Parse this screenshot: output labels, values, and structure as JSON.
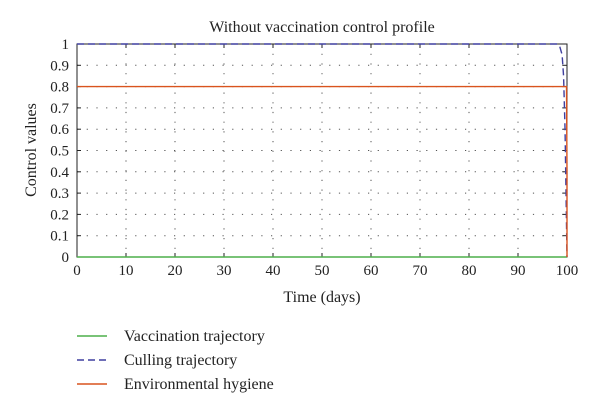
{
  "chart_data": {
    "type": "line",
    "title": "Without vaccination control profile",
    "xlabel": "Time (days)",
    "ylabel": "Control values",
    "xlim": [
      0,
      100
    ],
    "ylim": [
      0,
      1
    ],
    "xticks": [
      0,
      10,
      20,
      30,
      40,
      50,
      60,
      70,
      80,
      90,
      100
    ],
    "yticks": [
      0,
      0.1,
      0.2,
      0.3,
      0.4,
      0.5,
      0.6,
      0.7,
      0.8,
      0.9,
      1
    ],
    "xtick_labels": [
      "0",
      "10",
      "20",
      "30",
      "40",
      "50",
      "60",
      "70",
      "80",
      "90",
      "100"
    ],
    "ytick_labels": [
      "0",
      "0.1",
      "0.2",
      "0.3",
      "0.4",
      "0.5",
      "0.6",
      "0.7",
      "0.8",
      "0.9",
      "1"
    ],
    "grid": true,
    "legend_position": "bottom",
    "series": [
      {
        "name": "Vaccination trajectory",
        "color": "#4daf4a",
        "dash": "solid",
        "x": [
          0,
          100
        ],
        "y": [
          0,
          0
        ]
      },
      {
        "name": "Culling trajectory",
        "color": "#3f3f9f",
        "dash": "dashed",
        "x": [
          0,
          98,
          98.5,
          99,
          99.3,
          99.6,
          99.8,
          100
        ],
        "y": [
          1,
          1,
          0.99,
          0.95,
          0.85,
          0.6,
          0.3,
          0
        ]
      },
      {
        "name": "Environmental hygiene",
        "color": "#d9531e",
        "dash": "solid",
        "x": [
          0,
          99.9,
          100,
          100
        ],
        "y": [
          0.8,
          0.8,
          0.4,
          0
        ]
      }
    ]
  }
}
